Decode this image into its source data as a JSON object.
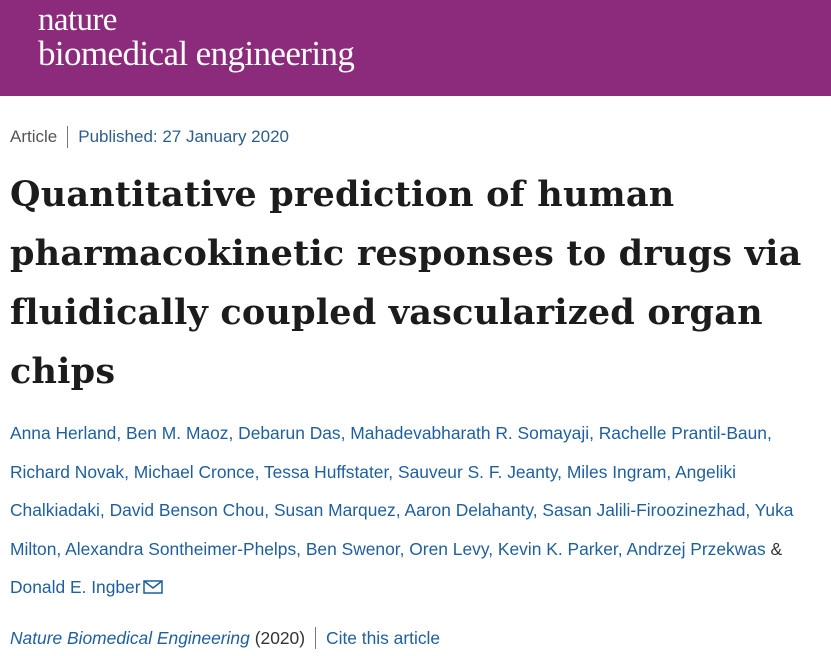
{
  "header": {
    "brand_line1": "nature",
    "brand_line2": "biomedical engineering",
    "background_color": "#8c2a7b"
  },
  "meta": {
    "article_type": "Article",
    "published": "Published: 27 January 2020"
  },
  "title": "Quantitative prediction of human pharmacokinetic responses to drugs via fluidically coupled vascularized organ chips",
  "authors": [
    "Anna Herland",
    "Ben M. Maoz",
    "Debarun Das",
    "Mahadevabharath R. Somayaji",
    "Rachelle Prantil-Baun",
    "Richard Novak",
    "Michael Cronce",
    "Tessa Huffstater",
    "Sauveur S. F. Jeanty",
    "Miles Ingram",
    "Angeliki Chalkiadaki",
    "David Benson Chou",
    "Susan Marquez",
    "Aaron Delahanty",
    "Sasan Jalili-Firoozinezhad",
    "Yuka Milton",
    "Alexandra Sontheimer-Phelps",
    "Ben Swenor",
    "Oren Levy",
    "Kevin K. Parker",
    "Andrzej Przekwas",
    "Donald E. Ingber"
  ],
  "author_separator": ", ",
  "author_conjunction": " & ",
  "corresponding_icon": "mail-icon",
  "journal": {
    "name": "Nature Biomedical Engineering",
    "year": "(2020)",
    "cite_label": "Cite this article"
  },
  "colors": {
    "link": "#1f5f9f",
    "title": "#1c1c1c"
  }
}
